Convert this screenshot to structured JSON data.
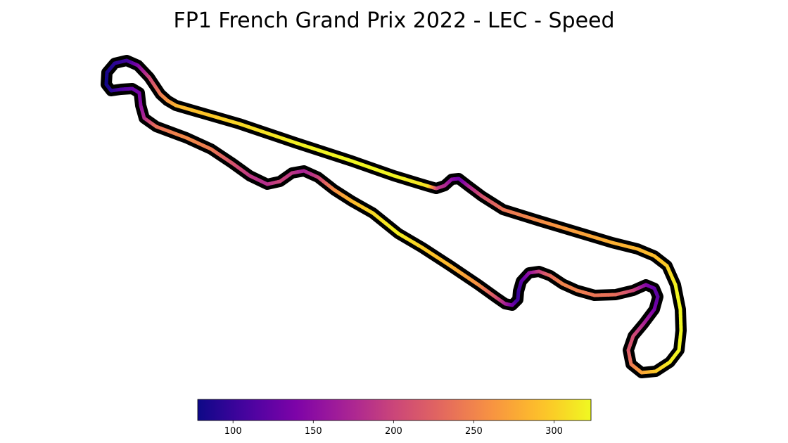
{
  "chart_data": {
    "type": "track-map",
    "title": "FP1 French Grand Prix 2022 - LEC - Speed",
    "colormap": "plasma",
    "colorbar": {
      "vmin": 78,
      "vmax": 323,
      "ticks": [
        100,
        150,
        200,
        250,
        300
      ],
      "tick_labels": [
        "100",
        "150",
        "200",
        "250",
        "300"
      ]
    },
    "track": {
      "points": [
        [
          566,
          332
        ],
        [
          600,
          352
        ],
        [
          640,
          378
        ],
        [
          680,
          405
        ],
        [
          705,
          423
        ],
        [
          718,
          432
        ],
        [
          728,
          434
        ],
        [
          736,
          426
        ],
        [
          737,
          414
        ],
        [
          741,
          400
        ],
        [
          752,
          388
        ],
        [
          766,
          386
        ],
        [
          782,
          392
        ],
        [
          800,
          404
        ],
        [
          820,
          413
        ],
        [
          845,
          420
        ],
        [
          875,
          419
        ],
        [
          900,
          413
        ],
        [
          918,
          405
        ],
        [
          930,
          410
        ],
        [
          935,
          422
        ],
        [
          930,
          440
        ],
        [
          915,
          460
        ],
        [
          900,
          478
        ],
        [
          893,
          498
        ],
        [
          897,
          518
        ],
        [
          912,
          530
        ],
        [
          932,
          528
        ],
        [
          952,
          515
        ],
        [
          965,
          498
        ],
        [
          968,
          470
        ],
        [
          967,
          440
        ],
        [
          960,
          405
        ],
        [
          948,
          378
        ],
        [
          930,
          364
        ],
        [
          906,
          354
        ],
        [
          870,
          345
        ],
        [
          820,
          330
        ],
        [
          760,
          312
        ],
        [
          715,
          298
        ],
        [
          685,
          279
        ],
        [
          665,
          264
        ],
        [
          652,
          254
        ],
        [
          642,
          255
        ],
        [
          632,
          264
        ],
        [
          620,
          268
        ],
        [
          606,
          264
        ],
        [
          560,
          250
        ],
        [
          500,
          229
        ],
        [
          420,
          203
        ],
        [
          340,
          176
        ],
        [
          250,
          150
        ],
        [
          238,
          143
        ],
        [
          228,
          134
        ],
        [
          212,
          110
        ],
        [
          196,
          93
        ],
        [
          180,
          86
        ],
        [
          163,
          90
        ],
        [
          152,
          103
        ],
        [
          151,
          120
        ],
        [
          158,
          129
        ],
        [
          172,
          127
        ],
        [
          188,
          126
        ],
        [
          198,
          132
        ],
        [
          200,
          150
        ],
        [
          205,
          168
        ],
        [
          222,
          180
        ],
        [
          265,
          196
        ],
        [
          300,
          212
        ],
        [
          330,
          232
        ],
        [
          355,
          250
        ],
        [
          380,
          262
        ],
        [
          398,
          258
        ],
        [
          415,
          246
        ],
        [
          432,
          243
        ],
        [
          452,
          252
        ],
        [
          475,
          270
        ],
        [
          500,
          286
        ],
        [
          530,
          303
        ],
        [
          566,
          332
        ]
      ],
      "speeds": [
        318,
        300,
        285,
        260,
        215,
        175,
        140,
        105,
        100,
        115,
        150,
        190,
        230,
        250,
        248,
        240,
        235,
        205,
        150,
        125,
        120,
        135,
        170,
        205,
        215,
        240,
        270,
        295,
        315,
        320,
        322,
        322,
        320,
        300,
        290,
        285,
        280,
        270,
        255,
        240,
        215,
        175,
        130,
        145,
        175,
        190,
        310,
        320,
        322,
        318,
        305,
        285,
        265,
        248,
        205,
        150,
        105,
        95,
        85,
        80,
        90,
        110,
        125,
        135,
        150,
        175,
        235,
        255,
        245,
        215,
        190,
        180,
        200,
        190,
        170,
        195,
        255,
        285,
        305,
        318
      ]
    }
  }
}
